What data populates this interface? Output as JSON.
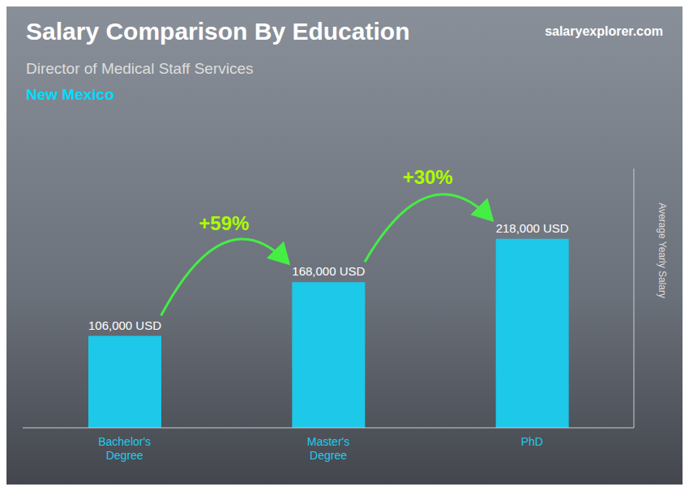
{
  "chart_data": {
    "type": "bar",
    "title": "Salary Comparison By Education",
    "subtitle": "Director of Medical Staff Services",
    "y_label": "Average Yearly Salary",
    "annotations": [
      "+59%",
      "+30%",
      "New Mexico",
      "salaryexplorer.com"
    ],
    "categories": [
      "Bachelor's\nDegree",
      "Master's\nDegree",
      "PhD"
    ],
    "values": [
      106000,
      168000,
      218000
    ],
    "value_labels": [
      "106,000 USD",
      "168,000 USD",
      "218,000 USD"
    ],
    "data_labels": true,
    "color": "#1EC8E8",
    "ylim": [
      0,
      299000
    ],
    "tick_labels": "x",
    "grid": false
  }
}
